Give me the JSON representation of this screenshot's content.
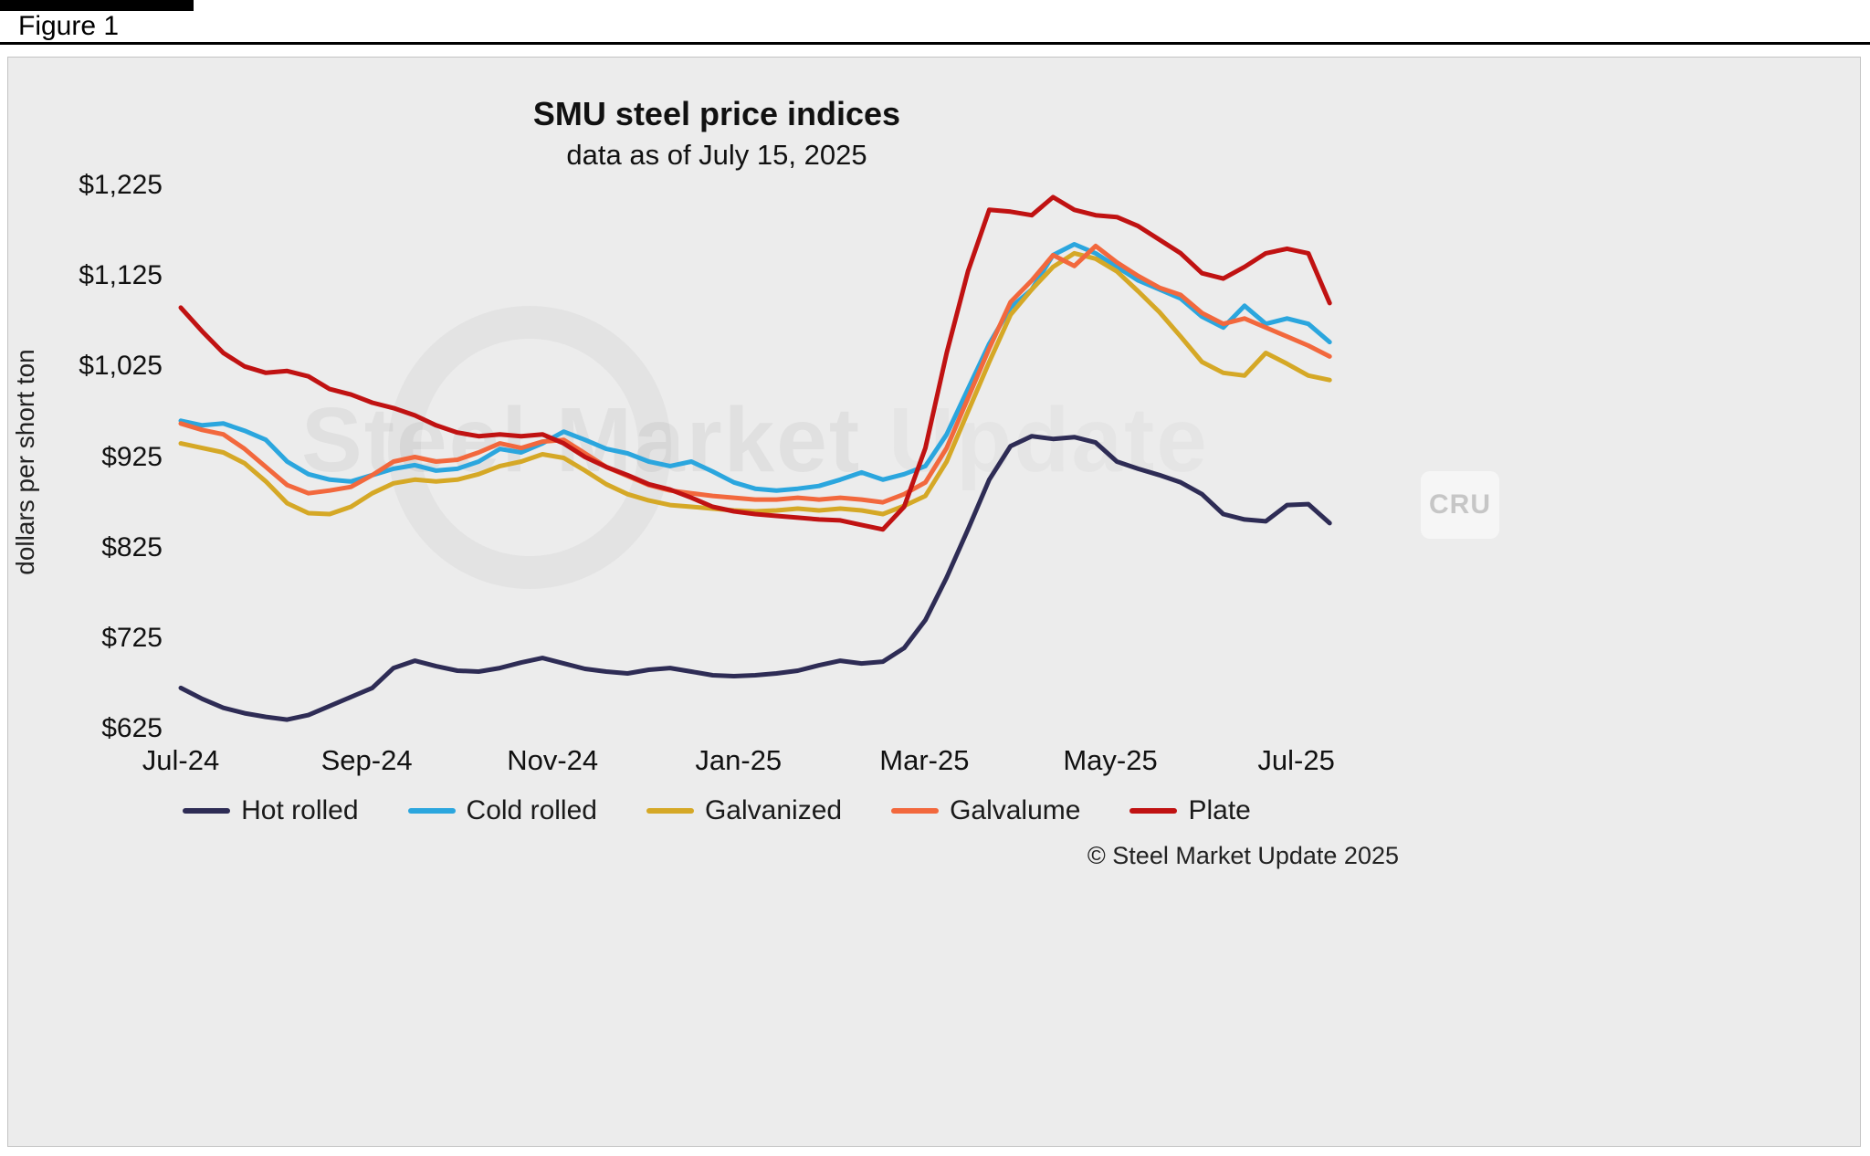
{
  "figure_label": "Figure 1",
  "watermark": {
    "text_bold": "Steel Market",
    "text_light": " Update",
    "cru": "CRU"
  },
  "footer": {
    "copyright": "© Steel Market Update 2025"
  },
  "chart_data": {
    "type": "line",
    "title": "SMU steel price indices",
    "subtitle": "data as of July 15, 2025",
    "ylabel": "dollars per short ton",
    "xlabel": "",
    "ylim": [
      625,
      1225
    ],
    "grid": false,
    "legend_position": "bottom",
    "y_ticks": [
      "$1,225",
      "$1,125",
      "$1,025",
      "$925",
      "$825",
      "$725",
      "$625"
    ],
    "y_tick_values": [
      1225,
      1125,
      1025,
      925,
      825,
      725,
      625
    ],
    "x_tick_labels": [
      "Jul-24",
      "Sep-24",
      "Nov-24",
      "Jan-25",
      "Mar-25",
      "May-25",
      "Jul-25"
    ],
    "x_tick_months": [
      0,
      2,
      4,
      6,
      8,
      10,
      12
    ],
    "x_unit": "weekly observations, Jul-24 through mid Jul-25",
    "series": [
      {
        "name": "Hot rolled",
        "color": "#2e2c55",
        "values": [
          670,
          658,
          648,
          642,
          638,
          635,
          640,
          650,
          660,
          670,
          692,
          700,
          694,
          689,
          688,
          692,
          698,
          703,
          697,
          691,
          688,
          686,
          690,
          692,
          688,
          684,
          683,
          684,
          686,
          689,
          695,
          700,
          697,
          699,
          714,
          745,
          792,
          845,
          900,
          937,
          948,
          945,
          947,
          941,
          920,
          912,
          905,
          897,
          884,
          862,
          856,
          854,
          872,
          873,
          852
        ]
      },
      {
        "name": "Cold rolled",
        "color": "#2ba6de",
        "values": [
          965,
          960,
          962,
          954,
          944,
          920,
          906,
          900,
          898,
          905,
          912,
          916,
          910,
          912,
          920,
          934,
          930,
          940,
          953,
          944,
          934,
          929,
          920,
          915,
          920,
          909,
          897,
          890,
          888,
          890,
          893,
          900,
          908,
          900,
          906,
          915,
          950,
          1000,
          1050,
          1090,
          1110,
          1148,
          1160,
          1150,
          1135,
          1120,
          1110,
          1100,
          1080,
          1068,
          1092,
          1072,
          1078,
          1072,
          1052
        ]
      },
      {
        "name": "Galvanized",
        "color": "#d5a826",
        "values": [
          940,
          935,
          930,
          918,
          898,
          874,
          863,
          862,
          870,
          885,
          896,
          900,
          898,
          900,
          906,
          915,
          920,
          928,
          924,
          910,
          895,
          884,
          877,
          872,
          870,
          868,
          866,
          865,
          866,
          868,
          866,
          868,
          866,
          862,
          871,
          882,
          920,
          975,
          1030,
          1082,
          1110,
          1135,
          1150,
          1144,
          1130,
          1108,
          1085,
          1058,
          1030,
          1018,
          1015,
          1040,
          1028,
          1015,
          1010
        ]
      },
      {
        "name": "Galvalume",
        "color": "#f2683d",
        "values": [
          962,
          955,
          950,
          934,
          914,
          894,
          885,
          888,
          892,
          905,
          920,
          925,
          920,
          922,
          930,
          940,
          935,
          942,
          944,
          929,
          914,
          904,
          894,
          888,
          885,
          882,
          880,
          878,
          878,
          880,
          878,
          880,
          878,
          875,
          884,
          897,
          935,
          990,
          1045,
          1096,
          1120,
          1148,
          1136,
          1158,
          1140,
          1125,
          1112,
          1104,
          1084,
          1072,
          1078,
          1068,
          1058,
          1048,
          1036
        ]
      },
      {
        "name": "Plate",
        "color": "#c01212",
        "values": [
          1090,
          1064,
          1040,
          1025,
          1018,
          1020,
          1014,
          1000,
          994,
          985,
          979,
          971,
          960,
          952,
          948,
          950,
          948,
          950,
          940,
          925,
          914,
          905,
          895,
          889,
          880,
          870,
          865,
          862,
          860,
          858,
          856,
          855,
          850,
          845,
          870,
          935,
          1040,
          1130,
          1198,
          1196,
          1192,
          1212,
          1198,
          1192,
          1190,
          1180,
          1165,
          1150,
          1128,
          1122,
          1135,
          1150,
          1155,
          1150,
          1095
        ]
      }
    ]
  }
}
